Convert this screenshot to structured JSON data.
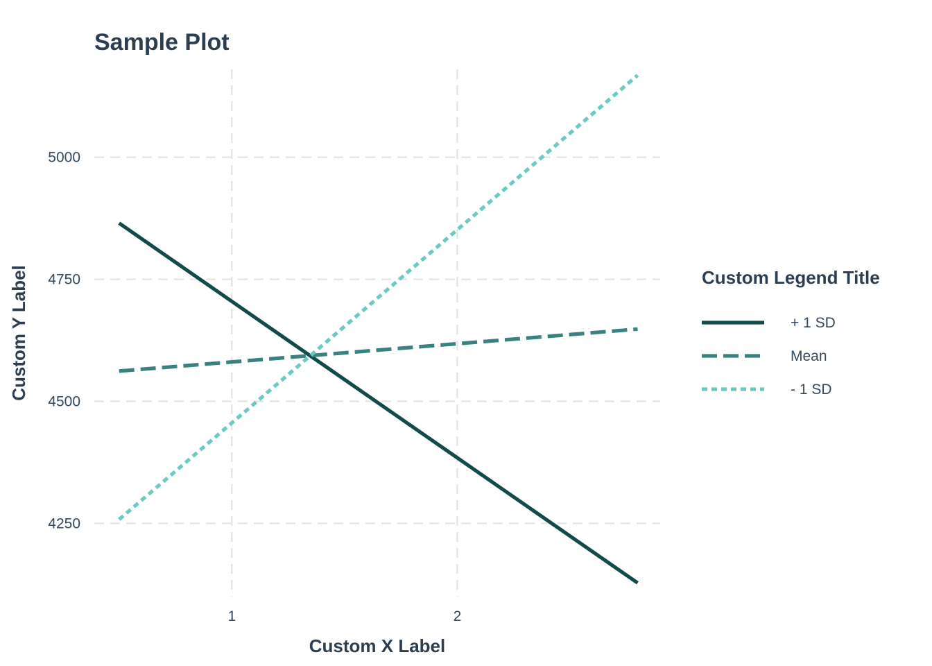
{
  "chart_data": {
    "type": "line",
    "title": "Sample Plot",
    "xlabel": "Custom X Label",
    "ylabel": "Custom Y Label",
    "legend_title": "Custom Legend Title",
    "legend_position": "right",
    "grid": true,
    "xlim": [
      0.39,
      2.9
    ],
    "ylim": [
      4100,
      5180
    ],
    "x_ticks": [
      1,
      2
    ],
    "y_ticks": [
      4250,
      4500,
      4750,
      5000
    ],
    "x": [
      0.5,
      2.8
    ],
    "series": [
      {
        "name": "+ 1 SD",
        "values": [
          4865,
          4128
        ],
        "color": "#134a4a",
        "dash": "solid"
      },
      {
        "name": "Mean",
        "values": [
          4562,
          4648
        ],
        "color": "#3a8280",
        "dash": "dashed"
      },
      {
        "name": "- 1 SD",
        "values": [
          4258,
          5168
        ],
        "color": "#6ccac4",
        "dash": "dotted"
      }
    ]
  }
}
